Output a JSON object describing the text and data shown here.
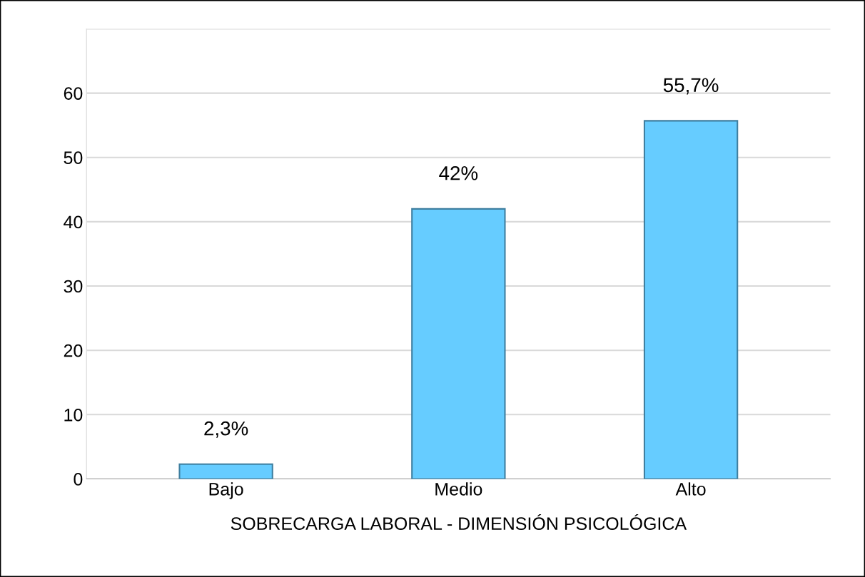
{
  "chart_data": {
    "type": "bar",
    "xlabel": "SOBRECARGA LABORAL - DIMENSIÓN PSICOLÓGICA",
    "categories": [
      "Bajo",
      "Medio",
      "Alto"
    ],
    "values": [
      2.3,
      42,
      55.7
    ],
    "value_labels": [
      "2,3%",
      "42%",
      "55,7%"
    ],
    "color": "#66ccff",
    "ylim": [
      0,
      70
    ],
    "yticks": [
      0,
      10,
      20,
      30,
      40,
      50,
      60,
      {
        "value": 70,
        "label": null
      }
    ],
    "grid": "y"
  }
}
